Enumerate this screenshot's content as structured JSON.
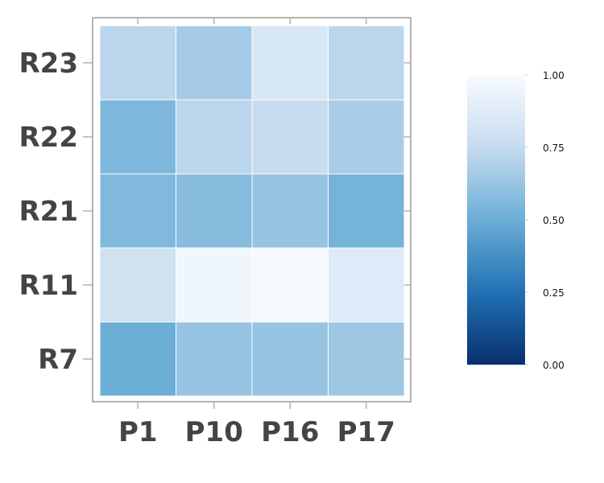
{
  "chart_data": {
    "type": "heatmap",
    "title": "",
    "xlabel": "",
    "ylabel": "",
    "x_categories": [
      "P1",
      "P10",
      "P16",
      "P17"
    ],
    "y_categories": [
      "R23",
      "R22",
      "R21",
      "R11",
      "R7"
    ],
    "values": [
      [
        0.72,
        0.66,
        0.84,
        0.72
      ],
      [
        0.55,
        0.72,
        0.76,
        0.67
      ],
      [
        0.56,
        0.58,
        0.62,
        0.53
      ],
      [
        0.8,
        0.96,
        0.99,
        0.87
      ],
      [
        0.5,
        0.62,
        0.62,
        0.64
      ]
    ],
    "colorbar": {
      "range": [
        0,
        1
      ],
      "ticks": [
        "0.00",
        "0.25",
        "0.50",
        "0.75",
        "1.00"
      ],
      "colormap": "Blues_r",
      "colors": [
        "#08306b",
        "#2171b5",
        "#6baed6",
        "#c6dbef",
        "#f7fbff"
      ]
    },
    "grid": false,
    "cell_border_color": "#ffffff",
    "frame_color": "#b3b3b3"
  }
}
